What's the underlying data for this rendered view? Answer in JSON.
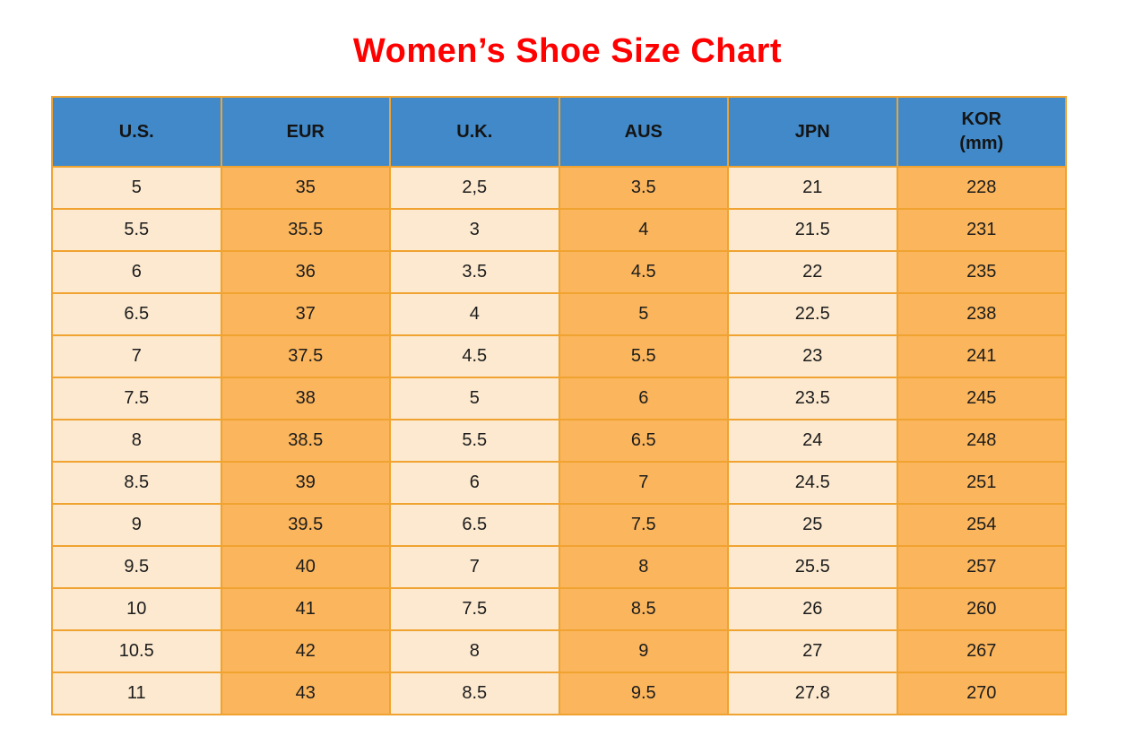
{
  "page": {
    "title": "Women’s Shoe Size Chart"
  },
  "colors": {
    "title_red": "#FF0000",
    "header_blue": "#4189C8",
    "cell_cream": "#FCE9CF",
    "cell_orange": "#FBB55C",
    "grid_orange": "#F0A330",
    "text_dark": "#1C1C1C"
  },
  "chart_data": {
    "type": "table",
    "title": "Women’s Shoe Size Chart",
    "columns": [
      "U.S.",
      "EUR",
      "U.K.",
      "AUS",
      "JPN",
      "KOR\n(mm)"
    ],
    "rows": [
      [
        "5",
        "35",
        "2,5",
        "3.5",
        "21",
        "228"
      ],
      [
        "5.5",
        "35.5",
        "3",
        "4",
        "21.5",
        "231"
      ],
      [
        "6",
        "36",
        "3.5",
        "4.5",
        "22",
        "235"
      ],
      [
        "6.5",
        "37",
        "4",
        "5",
        "22.5",
        "238"
      ],
      [
        "7",
        "37.5",
        "4.5",
        "5.5",
        "23",
        "241"
      ],
      [
        "7.5",
        "38",
        "5",
        "6",
        "23.5",
        "245"
      ],
      [
        "8",
        "38.5",
        "5.5",
        "6.5",
        "24",
        "248"
      ],
      [
        "8.5",
        "39",
        "6",
        "7",
        "24.5",
        "251"
      ],
      [
        "9",
        "39.5",
        "6.5",
        "7.5",
        "25",
        "254"
      ],
      [
        "9.5",
        "40",
        "7",
        "8",
        "25.5",
        "257"
      ],
      [
        "10",
        "41",
        "7.5",
        "8.5",
        "26",
        "260"
      ],
      [
        "10.5",
        "42",
        "8",
        "9",
        "27",
        "267"
      ],
      [
        "11",
        "43",
        "8.5",
        "9.5",
        "27.8",
        "270"
      ]
    ],
    "layout": {
      "header_position": "top",
      "grid": true,
      "column_fill_pattern": [
        "cream",
        "orange",
        "cream",
        "orange",
        "cream",
        "orange"
      ]
    }
  }
}
